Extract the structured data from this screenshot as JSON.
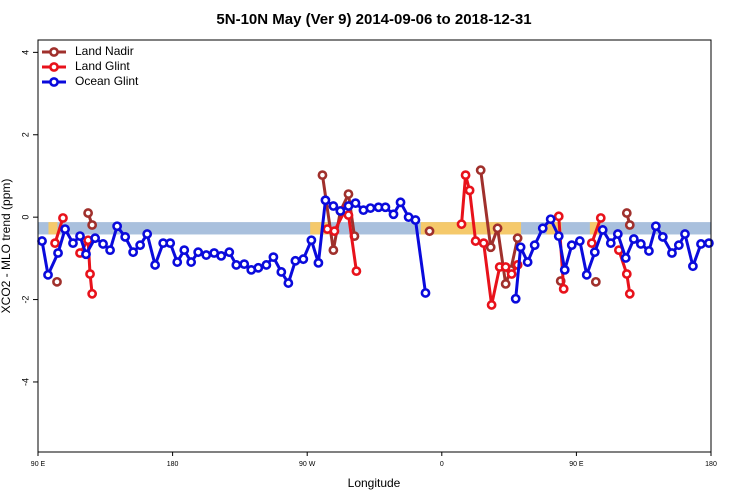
{
  "chart_data": {
    "type": "line",
    "title": "5N-10N May (Ver 9)   2014-09-06 to 2018-12-31",
    "xlabel": "Longitude",
    "ylabel": "XCO2 - MLO trend (ppm)",
    "xlim": [
      90,
      540
    ],
    "ylim": [
      -5.7,
      4.3
    ],
    "xticks": [
      {
        "value": 90,
        "label": "90 E"
      },
      {
        "value": 180,
        "label": "180"
      },
      {
        "value": 270,
        "label": "90 W"
      },
      {
        "value": 360,
        "label": "0"
      },
      {
        "value": 450,
        "label": "90 E"
      },
      {
        "value": 540,
        "label": "180"
      }
    ],
    "yticks": [
      -4,
      -2,
      0,
      2,
      4
    ],
    "legend": "top-left",
    "band": {
      "y": [
        -0.42,
        -0.12
      ],
      "color": "#a9c0dd",
      "highlight_color": "#f5c96b",
      "highlights": [
        [
          97,
          103
        ],
        [
          272,
          286
        ],
        [
          346,
          413
        ],
        [
          430,
          440
        ],
        [
          459,
          466
        ]
      ]
    },
    "series": [
      {
        "name": "Land Nadir",
        "color": "#a0302c",
        "x": [
          102.7,
          110,
          123.5,
          126.2,
          130,
          280.2,
          287.5,
          292.2,
          297.6,
          301.6,
          320,
          351.8,
          360,
          386.0,
          392.7,
          397.3,
          402.7,
          406.1,
          410.7,
          420,
          439.5,
          450,
          463.0,
          470,
          483.7,
          485.7
        ],
        "values": [
          -1.57,
          null,
          0.1,
          -0.19,
          null,
          1.02,
          -0.8,
          0.15,
          0.56,
          -0.46,
          null,
          -0.34,
          null,
          1.14,
          -0.73,
          -0.27,
          -1.62,
          -1.28,
          -0.51,
          null,
          -1.55,
          null,
          -1.57,
          null,
          0.1,
          -0.19
        ]
      },
      {
        "name": "Land Glint",
        "color": "#e8121b",
        "x": [
          101.4,
          106.7,
          112,
          118.1,
          123.5,
          124.8,
          126.2,
          200,
          283.5,
          288.2,
          295.6,
          297.6,
          302.9,
          340,
          373.2,
          375.9,
          378.6,
          382.6,
          388.0,
          393.3,
          398.7,
          402.7,
          406.7,
          410.7,
          420,
          438.2,
          441.5,
          450,
          460.3,
          466.3,
          472,
          478.4,
          483.7,
          485.7
        ],
        "values": [
          -0.63,
          -0.02,
          null,
          -0.87,
          -0.56,
          -1.38,
          -1.86,
          null,
          -0.29,
          -0.34,
          0.19,
          0.05,
          -1.31,
          null,
          -0.17,
          1.02,
          0.65,
          -0.58,
          -0.63,
          -2.13,
          -1.21,
          -1.21,
          -1.38,
          -1.16,
          null,
          0.02,
          -1.74,
          null,
          -0.63,
          -0.02,
          null,
          -0.8,
          -1.38,
          -1.86
        ]
      },
      {
        "name": "Ocean Glint",
        "color": "#0a0adc",
        "x": [
          92.7,
          96.7,
          103.4,
          108.1,
          113.4,
          118.1,
          122.1,
          128.2,
          133.5,
          138.2,
          142.9,
          148.3,
          153.6,
          158.3,
          163.0,
          168.3,
          173.7,
          178.4,
          183.1,
          187.8,
          192.4,
          197.1,
          202.5,
          207.8,
          212.5,
          217.9,
          222.6,
          227.9,
          232.6,
          237.3,
          242.7,
          247.4,
          252.7,
          257.4,
          262.1,
          267.4,
          272.8,
          277.5,
          282.2,
          287.5,
          292.2,
          297.6,
          302.3,
          307.6,
          312.3,
          317.7,
          322.3,
          327.7,
          332.4,
          337.8,
          342.4,
          349.1,
          380,
          409.4,
          412.7,
          417.4,
          422.1,
          427.5,
          432.8,
          438.2,
          442.2,
          446.9,
          452.3,
          456.9,
          462.3,
          467.6,
          473.0,
          477.7,
          483.0,
          488.4,
          493.1,
          498.5,
          503.1,
          507.8,
          513.9,
          518.5,
          522.6,
          527.9,
          533.3,
          538.6
        ],
        "values": [
          -0.58,
          -1.4,
          -0.87,
          -0.29,
          -0.63,
          -0.46,
          -0.9,
          -0.51,
          -0.65,
          -0.8,
          -0.22,
          -0.48,
          -0.85,
          -0.68,
          -0.41,
          -1.16,
          -0.63,
          -0.63,
          -1.09,
          -0.8,
          -1.09,
          -0.85,
          -0.92,
          -0.87,
          -0.94,
          -0.85,
          -1.16,
          -1.14,
          -1.28,
          -1.23,
          -1.16,
          -0.97,
          -1.33,
          -1.6,
          -1.06,
          -1.02,
          -0.56,
          -1.11,
          0.41,
          0.27,
          0.15,
          0.27,
          0.34,
          0.17,
          0.22,
          0.24,
          0.24,
          0.07,
          0.36,
          0.0,
          -0.07,
          -1.84,
          null,
          -1.98,
          -0.73,
          -1.09,
          -0.68,
          -0.27,
          -0.05,
          -0.46,
          -1.28,
          -0.68,
          -0.58,
          -1.4,
          -0.85,
          -0.31,
          -0.63,
          -0.41,
          -0.99,
          -0.53,
          -0.65,
          -0.82,
          -0.22,
          -0.48,
          -0.87,
          -0.68,
          -0.41,
          -1.19,
          -0.65,
          -0.63
        ]
      }
    ]
  }
}
